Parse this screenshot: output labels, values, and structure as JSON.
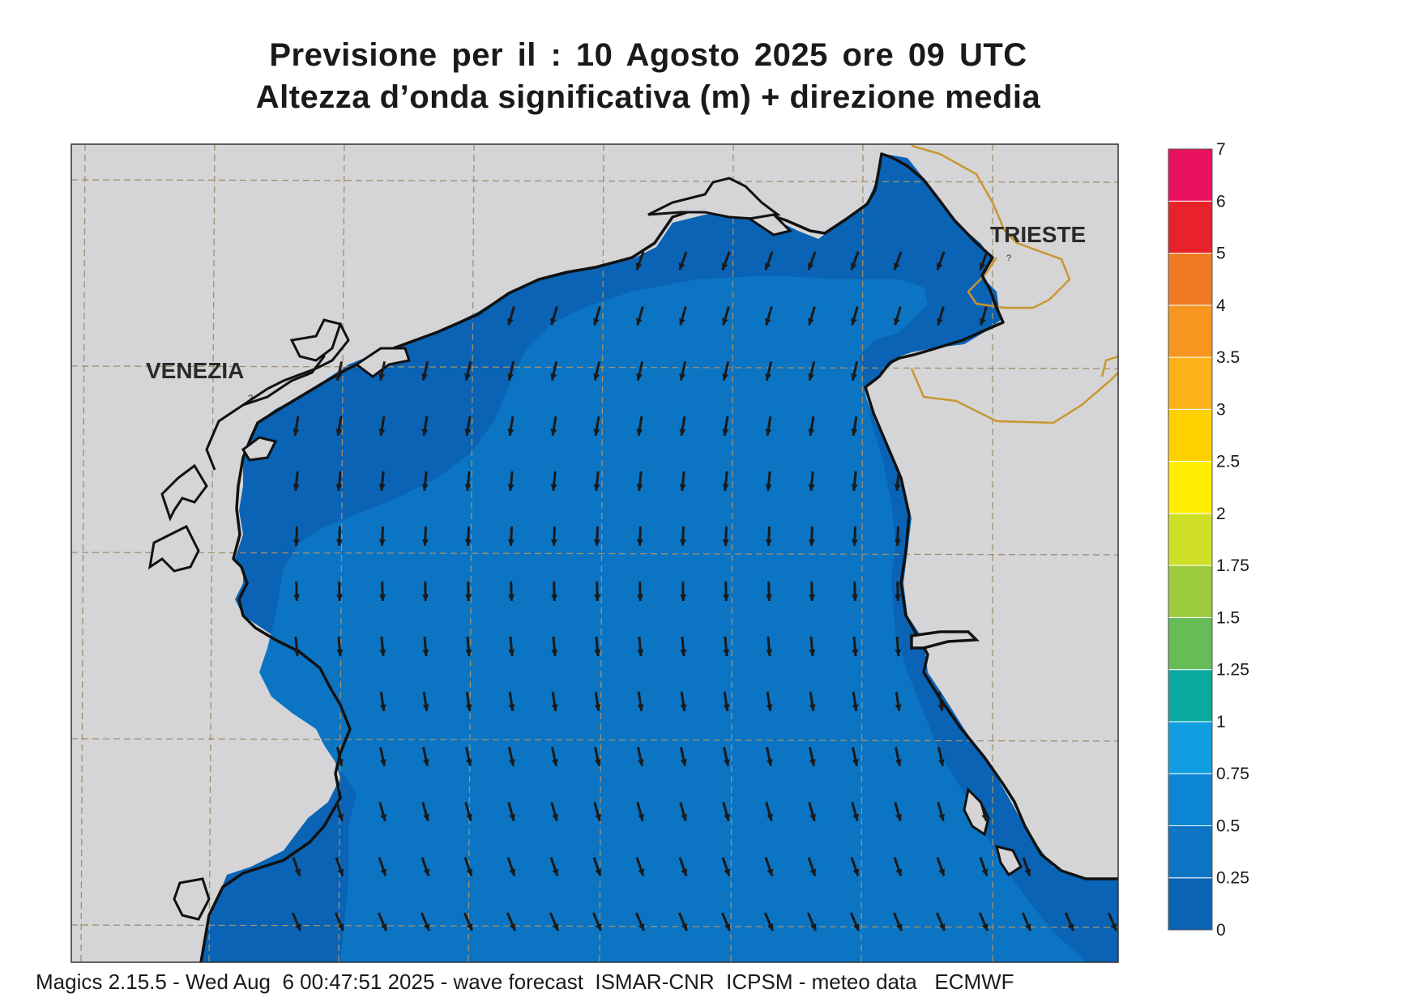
{
  "title_line1": "Previsione per il  :  10   Agosto  2025   ore 09 UTC",
  "title_line2": "Altezza d’onda significativa (m) + direzione media",
  "cities": {
    "venezia": "VENEZIA",
    "trieste": "TRIESTE"
  },
  "colorbar": {
    "labels": [
      "0",
      "0.25",
      "0.5",
      "0.75",
      "1",
      "1.25",
      "1.5",
      "1.75",
      "2",
      "2.5",
      "3",
      "3.5",
      "4",
      "5",
      "6",
      "7"
    ],
    "colors": [
      "#0a63b5",
      "#0b75c4",
      "#0c86d4",
      "#109ee0",
      "#0aa9a0",
      "#66bc56",
      "#9ccb3c",
      "#cfdf26",
      "#ffee00",
      "#ffd000",
      "#fbb21a",
      "#f7961e",
      "#f07a22",
      "#e8212a",
      "#ea1160"
    ]
  },
  "map_colors": {
    "land": "#d5d5d7",
    "sea_low": "#0a63b5",
    "sea_mid": "#0b75c4",
    "border": "#c9962f"
  },
  "footer": "Magics 2.15.5 - Wed Aug  6 00:47:51 2025 - wave forecast  ISMAR-CNR  ICPSM - meteo data   ECMWF"
}
